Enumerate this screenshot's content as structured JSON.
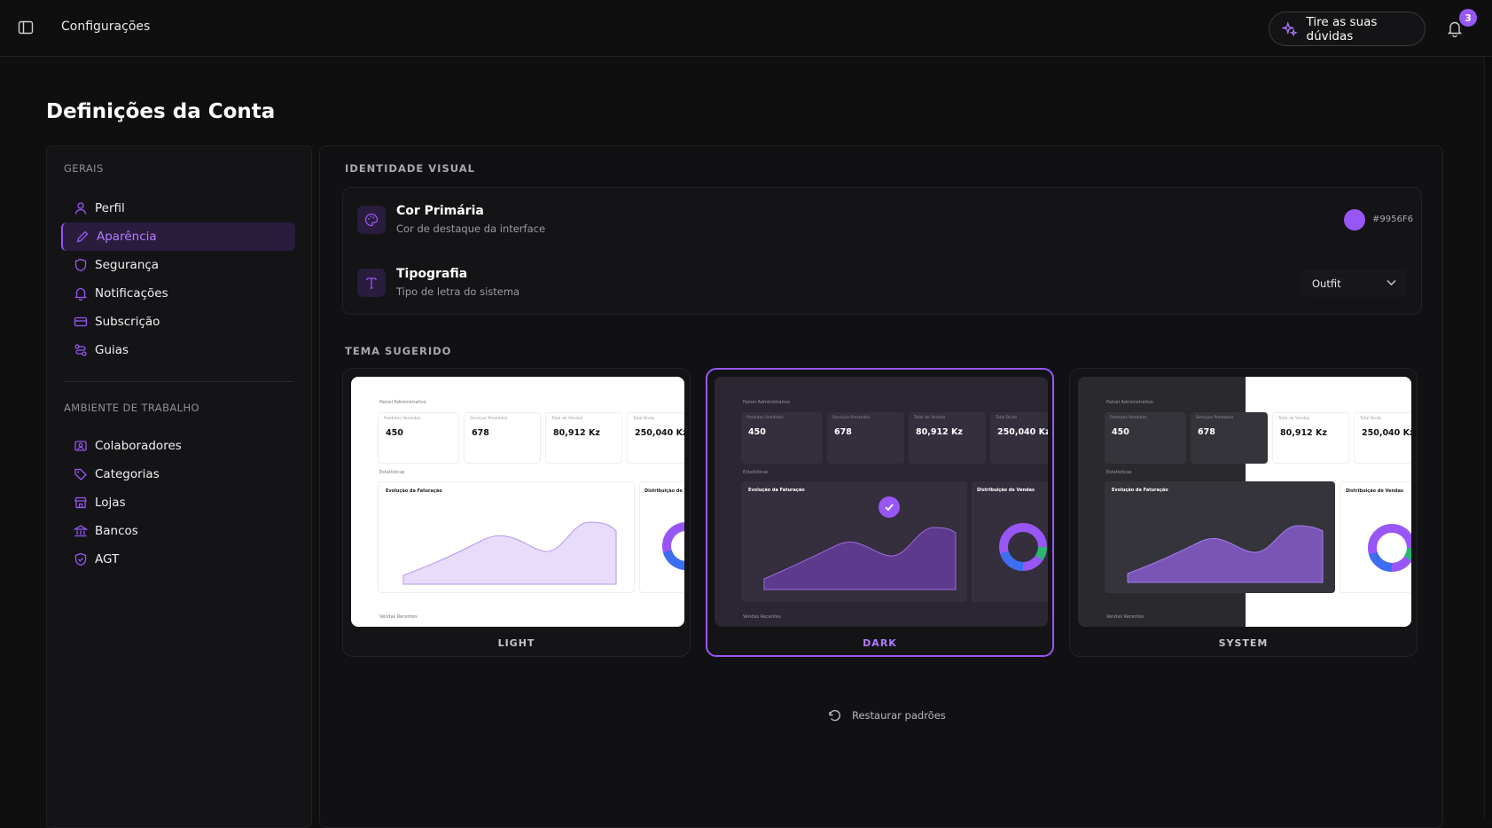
{
  "topbar": {
    "title": "Configurações",
    "ask_button": "Tire as suas dúvidas",
    "notifications_count": "3"
  },
  "page": {
    "title": "Definições da Conta"
  },
  "sidebar": {
    "general_label": "GERAIS",
    "general_items": [
      {
        "label": "Perfil",
        "icon": "user-icon"
      },
      {
        "label": "Aparência",
        "icon": "pencil-icon",
        "active": true
      },
      {
        "label": "Segurança",
        "icon": "shield-icon"
      },
      {
        "label": "Notificações",
        "icon": "bell-icon"
      },
      {
        "label": "Subscrição",
        "icon": "credit-card-icon"
      },
      {
        "label": "Guias",
        "icon": "route-icon"
      }
    ],
    "workspace_label": "AMBIENTE DE TRABALHO",
    "workspace_items": [
      {
        "label": "Colaboradores",
        "icon": "users-icon"
      },
      {
        "label": "Categorias",
        "icon": "tag-icon"
      },
      {
        "label": "Lojas",
        "icon": "store-icon"
      },
      {
        "label": "Bancos",
        "icon": "bank-icon"
      },
      {
        "label": "AGT",
        "icon": "shield-check-icon"
      }
    ]
  },
  "identity": {
    "heading": "IDENTIDADE VISUAL",
    "primary_color": {
      "title": "Cor Primária",
      "subtitle": "Cor de destaque da interface",
      "value": "#9956F6"
    },
    "typography": {
      "title": "Tipografia",
      "subtitle": "Tipo de letra do sistema",
      "value": "Outfit"
    }
  },
  "themes": {
    "heading": "TEMA SUGERIDO",
    "selected": "dark",
    "options": [
      {
        "id": "light",
        "label": "LIGHT"
      },
      {
        "id": "dark",
        "label": "DARK"
      },
      {
        "id": "system",
        "label": "SYSTEM"
      }
    ],
    "preview": {
      "header": "Painel Administrativo",
      "stats": [
        {
          "caption": "Produtos Vendidos",
          "value": "450"
        },
        {
          "caption": "Serviços Prestados",
          "value": "678"
        },
        {
          "caption": "Total de Vendas",
          "value": "80,912 Kz"
        },
        {
          "caption": "Total Bruto",
          "value": "250,040 Kz"
        }
      ],
      "section": "Estatísticas",
      "chart_title": "Evolução da Faturação",
      "donut_title": "Distribuição de Vendas",
      "footer": "Vendas Recentes"
    }
  },
  "restore_label": "Restaurar padrões",
  "colors": {
    "accent": "#9956F6",
    "background": "#0f0f10"
  }
}
